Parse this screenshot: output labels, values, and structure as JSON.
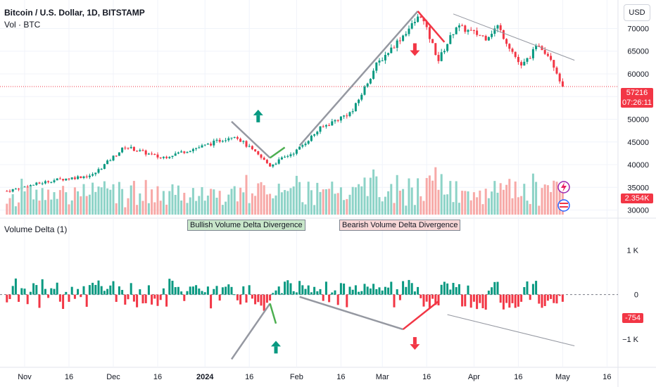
{
  "header": {
    "title": "Bitcoin / U.S. Dollar, 1D, BITSTAMP",
    "volume_label": "Vol · BTC",
    "currency_button": "USD"
  },
  "indicator": {
    "name": "Volume Delta (1)",
    "bullish_label": "Bullish Volume Delta Divergence",
    "bearish_label": "Bearish Volume Delta Divergence"
  },
  "price_tags": {
    "last_price": "57216",
    "countdown": "07:26:11",
    "volume": "2.354K",
    "delta": "-754"
  },
  "colors": {
    "up": "#089981",
    "down": "#f23645",
    "up_vol": "#8dd3c7",
    "down_vol": "#f7a9a7",
    "bullish": "#4caf50",
    "bearish": "#f23645",
    "trend": "#9598a1"
  },
  "chart_data": [
    {
      "type": "candlestick",
      "title": "Bitcoin / U.S. Dollar, 1D, BITSTAMP",
      "y_ticks": [
        30000,
        35000,
        40000,
        45000,
        50000,
        55000,
        60000,
        65000,
        70000
      ],
      "y_tick_labels": [
        "30000",
        "35000",
        "40000",
        "45000",
        "50000",
        "",
        "60000",
        "65000",
        "70000"
      ],
      "ylim": [
        29000,
        75500
      ],
      "x_ticks": [
        "Nov",
        "16",
        "Dec",
        "16",
        "2024",
        "16",
        "Feb",
        "16",
        "Mar",
        "16",
        "Apr",
        "16",
        "May",
        "16"
      ],
      "x_tick_dates": [
        "2023-11-01",
        "2023-11-16",
        "2023-12-01",
        "2023-12-16",
        "2024-01-01",
        "2024-01-16",
        "2024-02-01",
        "2024-02-16",
        "2024-03-01",
        "2024-03-16",
        "2024-04-01",
        "2024-04-16",
        "2024-05-01",
        "2024-05-16"
      ],
      "closing_price_keypoints": [
        {
          "date": "2023-10-26",
          "close": 34200
        },
        {
          "date": "2023-11-10",
          "close": 36500
        },
        {
          "date": "2023-11-24",
          "close": 37700
        },
        {
          "date": "2023-12-05",
          "close": 44000
        },
        {
          "date": "2023-12-17",
          "close": 41500
        },
        {
          "date": "2024-01-01",
          "close": 44200
        },
        {
          "date": "2024-01-11",
          "close": 46500
        },
        {
          "date": "2024-01-23",
          "close": 39800
        },
        {
          "date": "2024-02-01",
          "close": 43100
        },
        {
          "date": "2024-02-09",
          "close": 48000
        },
        {
          "date": "2024-02-20",
          "close": 51800
        },
        {
          "date": "2024-02-28",
          "close": 62000
        },
        {
          "date": "2024-03-08",
          "close": 68500
        },
        {
          "date": "2024-03-14",
          "close": 73000
        },
        {
          "date": "2024-03-20",
          "close": 63000
        },
        {
          "date": "2024-03-26",
          "close": 70500
        },
        {
          "date": "2024-04-05",
          "close": 68000
        },
        {
          "date": "2024-04-09",
          "close": 70500
        },
        {
          "date": "2024-04-17",
          "close": 61500
        },
        {
          "date": "2024-04-23",
          "close": 66500
        },
        {
          "date": "2024-04-27",
          "close": 63500
        },
        {
          "date": "2024-05-01",
          "close": 57216
        }
      ],
      "last_price": 57216,
      "series": [
        {
          "name": "Vol · BTC",
          "last_value": "2.354K"
        }
      ],
      "annotations": [
        "up arrow at 2024-01-19",
        "down arrow at 2024-03-12"
      ]
    },
    {
      "type": "bar",
      "title": "Volume Delta (1)",
      "y_ticks": [
        1000,
        0,
        -1000
      ],
      "y_tick_labels": [
        "1 K",
        "0",
        "−1 K"
      ],
      "ylim": [
        -1600,
        1400
      ],
      "last_value": -754,
      "annotations": [
        "Bullish Volume Delta Divergence",
        "Bearish Volume Delta Divergence"
      ]
    }
  ]
}
